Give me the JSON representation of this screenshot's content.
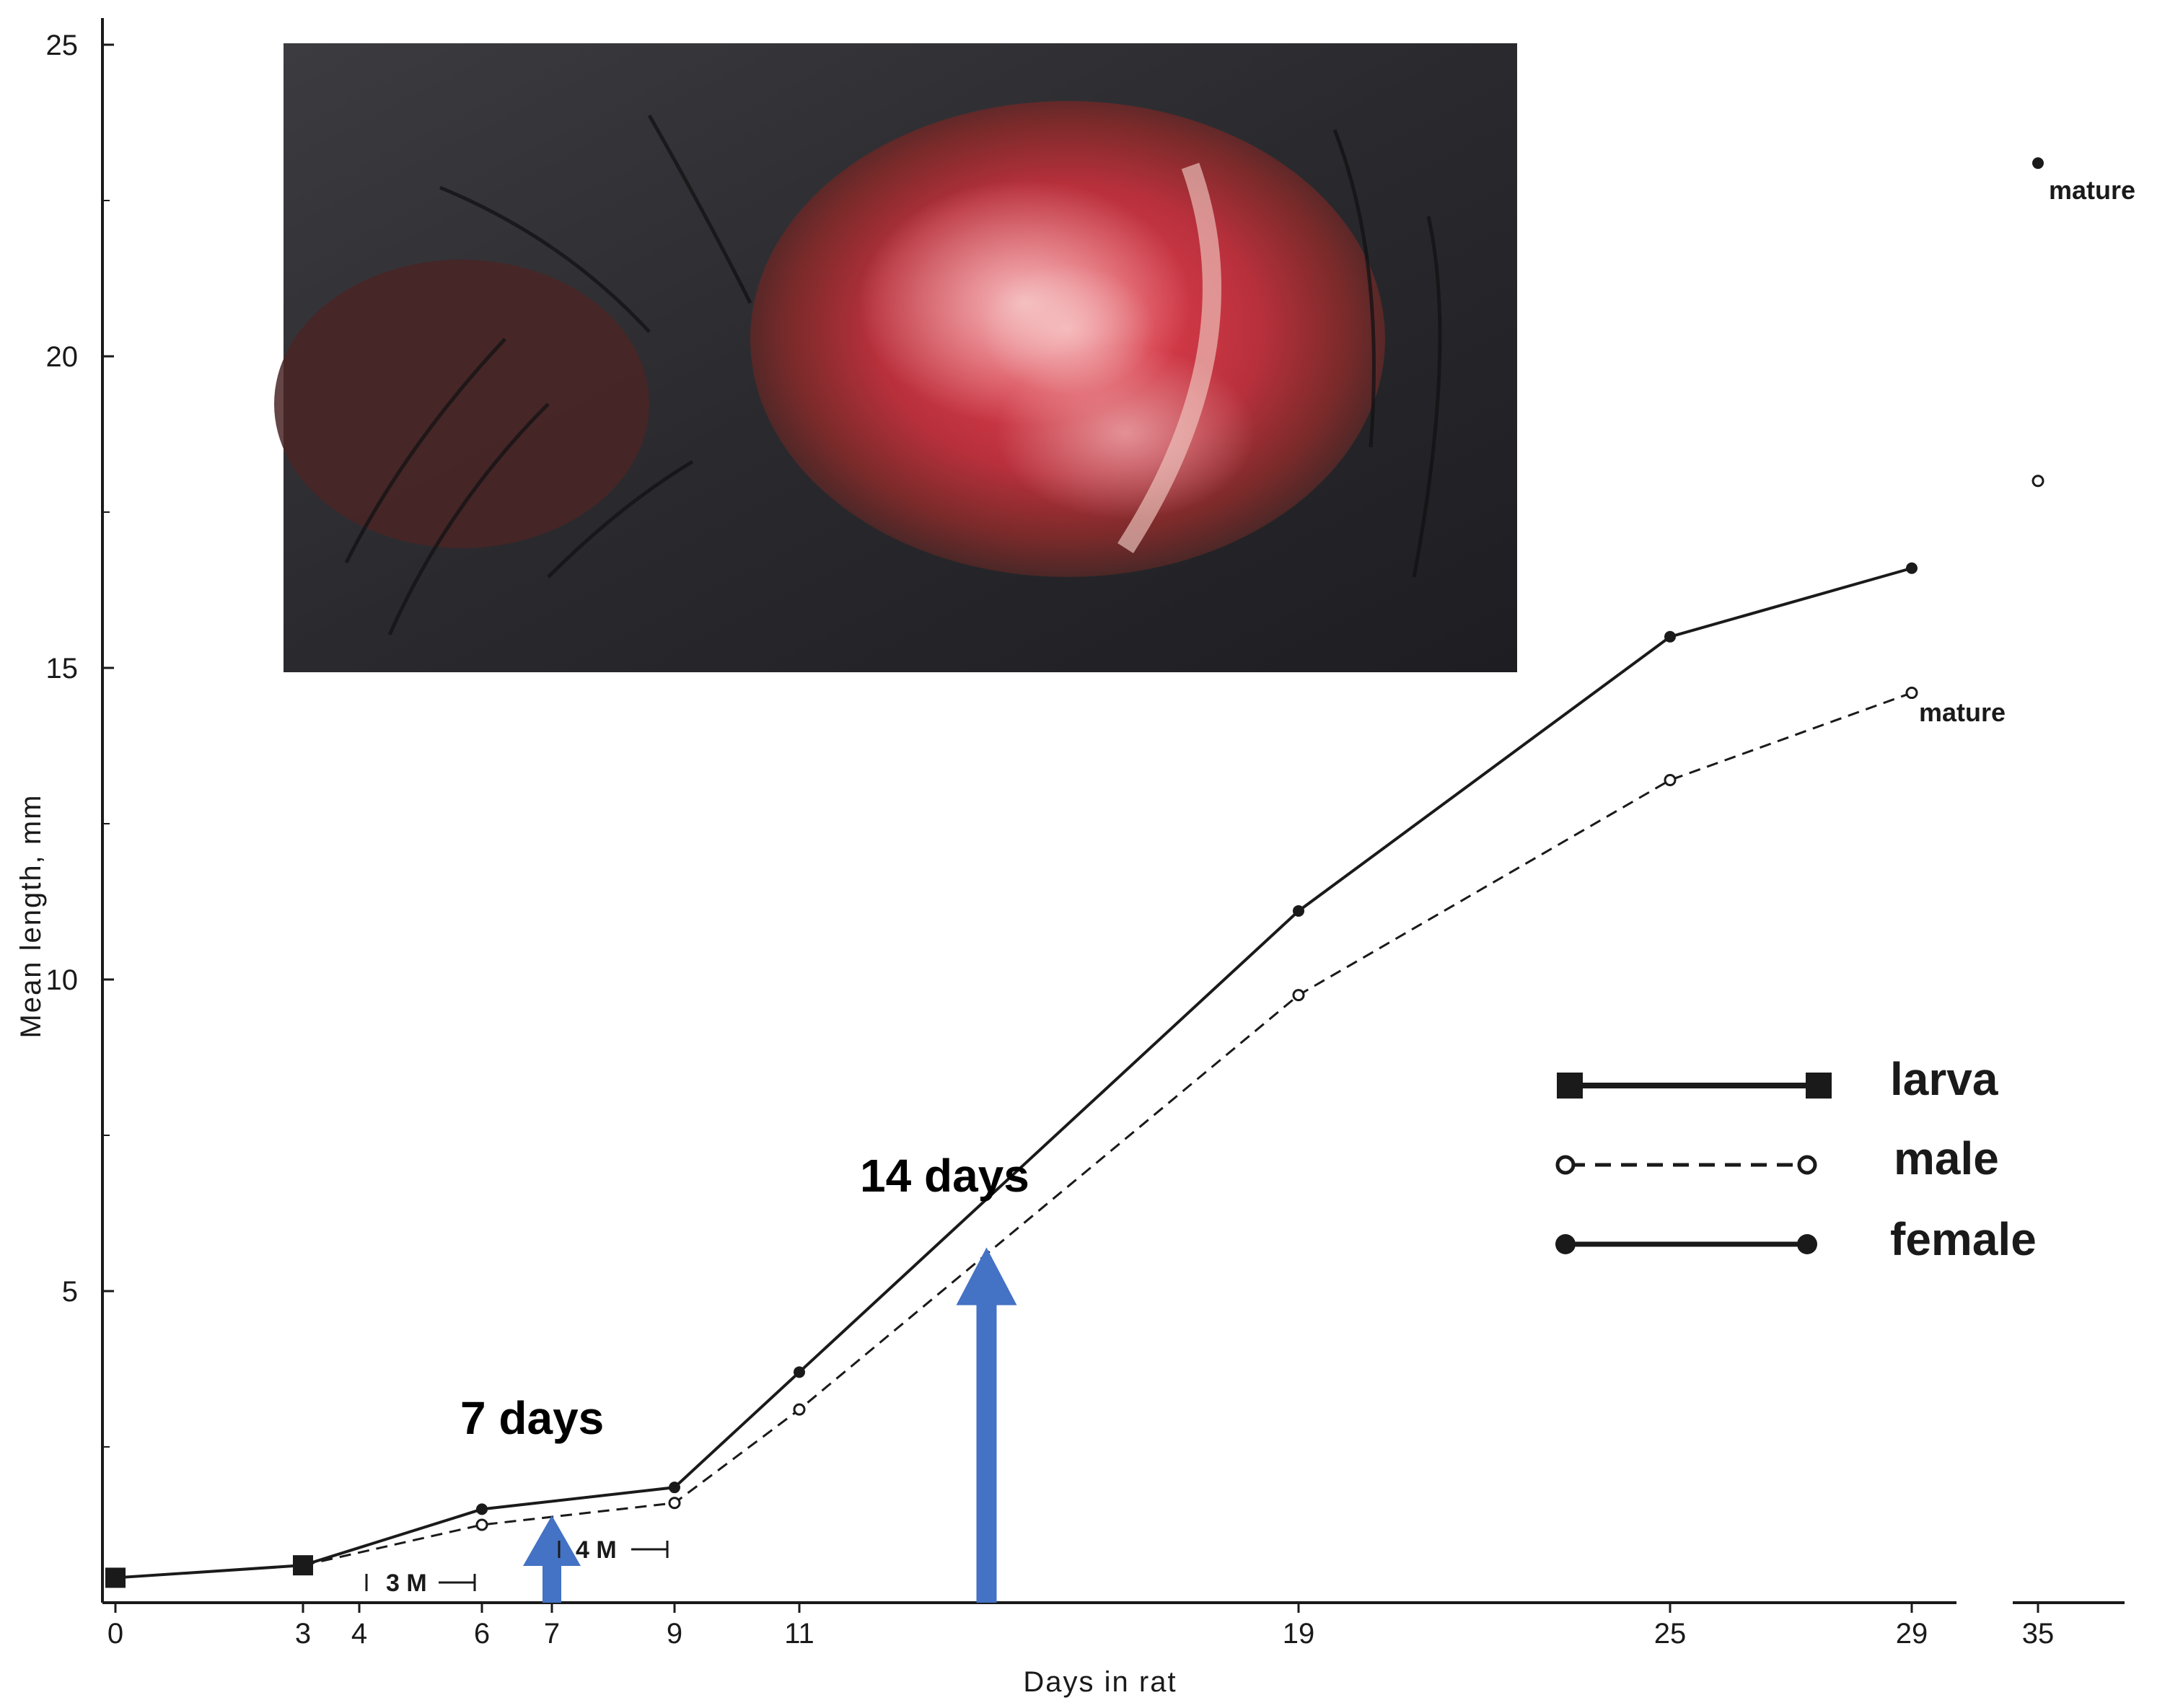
{
  "chart_data": {
    "type": "line",
    "title": "",
    "xlabel": "Days  in rat",
    "ylabel": "Mean length,   mm",
    "xlim": [
      0,
      35
    ],
    "ylim": [
      0,
      25
    ],
    "x_ticks": [
      0,
      3,
      4,
      6,
      7,
      9,
      11,
      19,
      25,
      29,
      35
    ],
    "y_ticks": [
      5,
      10,
      15,
      20,
      25
    ],
    "axis_break_between": [
      29,
      35
    ],
    "grid": false,
    "legend_position": "right",
    "series": [
      {
        "name": "larva",
        "marker": "square",
        "line": "solid",
        "x": [
          0,
          3
        ],
        "y": [
          0.4,
          0.6
        ]
      },
      {
        "name": "male",
        "marker": "open-circle",
        "line": "dashed",
        "x": [
          3,
          6,
          9,
          11,
          19,
          25,
          29
        ],
        "y": [
          0.6,
          1.25,
          1.6,
          3.1,
          9.75,
          13.2,
          14.6
        ]
      },
      {
        "name": "female",
        "marker": "dot",
        "line": "solid",
        "x": [
          3,
          6,
          9,
          11,
          19,
          25,
          29
        ],
        "y": [
          0.6,
          1.5,
          1.85,
          3.7,
          11.1,
          15.5,
          16.6
        ]
      }
    ],
    "isolated_points": [
      {
        "series": "female",
        "x": 35,
        "y": 23.1,
        "label": "mature"
      },
      {
        "series": "male",
        "x": 35,
        "y": 18.0,
        "label": ""
      }
    ],
    "annotations": {
      "male_mature_label": "mature",
      "arrows": [
        {
          "label": "7 days",
          "x": 7,
          "y_from": 0,
          "y_to": 1.4
        },
        {
          "label": "14 days",
          "x": 14,
          "y_from": 0,
          "y_to": 5.7
        }
      ],
      "molt_periods": [
        {
          "label": "3 M",
          "x_from": 4,
          "x_to": 6
        },
        {
          "label": "4 M",
          "x_from": 7,
          "x_to": 9
        }
      ],
      "arrow_color": "#4472c4"
    },
    "inset_photo": {
      "description_icon": "photo-inset"
    }
  }
}
